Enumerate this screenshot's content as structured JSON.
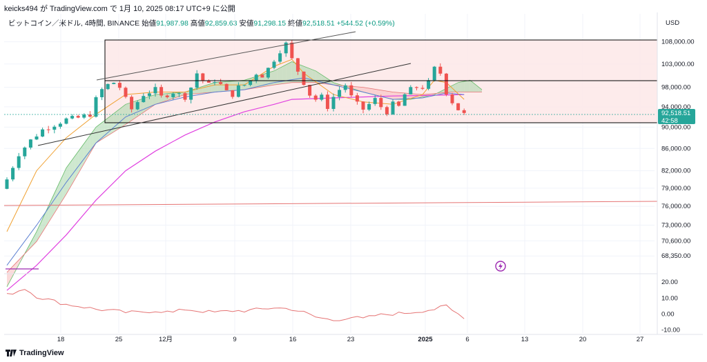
{
  "header": {
    "text": "keicks494 が TradingView.com で 1月 10, 2025 08:17 UTC+9 に公開"
  },
  "symbol": {
    "name": "ビットコイン／米ドル, 4時間, BINANCE",
    "open_label": "始値",
    "open": "91,987.98",
    "high_label": "高値",
    "high": "92,859.63",
    "low_label": "安値",
    "low": "91,298.15",
    "close_label": "終値",
    "close": "92,518.51",
    "change": "+544.52 (+0.59%)"
  },
  "currency": "USD",
  "last_price": {
    "value": "92,518.51",
    "countdown": "42:58",
    "color": "#26a69a"
  },
  "footer": {
    "brand": "TradingView"
  },
  "colors": {
    "up": "#26a69a",
    "down": "#ef5350",
    "ma_orange": "#f0a030",
    "ma_blue": "#5b7fd1",
    "ma_magenta": "#e040e0",
    "cloud_green": "#a5d6a7",
    "cloud_red": "#f8bbbb",
    "range_fill": "#fde8e8",
    "lines": "#000000",
    "osc": "#e57373"
  },
  "chart_data": [
    {
      "type": "candlestick",
      "title": "",
      "x_tick_labels": [
        "18",
        "25",
        "12月",
        "9",
        "16",
        "23",
        "2025",
        "6",
        "13",
        "20",
        "27"
      ],
      "y_tick_labels": [
        "108,000.00",
        "103,000.00",
        "98,000.00",
        "94,000.00",
        "90,000.00",
        "86,000.00",
        "82,000.00",
        "79,000.00",
        "76,000.00",
        "73,000.00",
        "70,600.00",
        "68,350.00"
      ],
      "y_scale": "log",
      "ylim": [
        66000,
        111000
      ],
      "close_path": [
        [
          0,
          80500
        ],
        [
          2,
          85000
        ],
        [
          4,
          87500
        ],
        [
          6,
          89500
        ],
        [
          8,
          90500
        ],
        [
          10,
          91500
        ],
        [
          12,
          91800
        ],
        [
          14,
          92500
        ],
        [
          15,
          95500
        ],
        [
          16,
          97500
        ],
        [
          17,
          98500
        ],
        [
          18,
          99000
        ],
        [
          19,
          98000
        ],
        [
          20,
          95500
        ],
        [
          21,
          93500
        ],
        [
          22,
          95000
        ],
        [
          23,
          96500
        ],
        [
          24,
          97000
        ],
        [
          25,
          97500
        ],
        [
          26,
          96000
        ],
        [
          27,
          96500
        ],
        [
          28,
          97000
        ],
        [
          29,
          96500
        ],
        [
          30,
          96000
        ],
        [
          31,
          98000
        ],
        [
          32,
          101000
        ],
        [
          33,
          99500
        ],
        [
          34,
          98500
        ],
        [
          35,
          99500
        ],
        [
          36,
          98500
        ],
        [
          37,
          97000
        ],
        [
          38,
          96500
        ],
        [
          39,
          98000
        ],
        [
          40,
          98500
        ],
        [
          41,
          99500
        ],
        [
          42,
          101000
        ],
        [
          43,
          100500
        ],
        [
          44,
          102000
        ],
        [
          45,
          104000
        ],
        [
          46,
          106000
        ],
        [
          47,
          107500
        ],
        [
          48,
          104000
        ],
        [
          49,
          101500
        ],
        [
          50,
          99000
        ],
        [
          51,
          96500
        ],
        [
          52,
          95500
        ],
        [
          53,
          96000
        ],
        [
          54,
          94000
        ],
        [
          55,
          96000
        ],
        [
          56,
          97500
        ],
        [
          57,
          98500
        ],
        [
          58,
          96000
        ],
        [
          59,
          94500
        ],
        [
          60,
          93500
        ],
        [
          61,
          94500
        ],
        [
          62,
          95500
        ],
        [
          63,
          94000
        ],
        [
          64,
          93000
        ],
        [
          65,
          94500
        ],
        [
          66,
          94000
        ],
        [
          67,
          96500
        ],
        [
          68,
          97500
        ],
        [
          69,
          98000
        ],
        [
          70,
          98000
        ],
        [
          71,
          99000
        ],
        [
          72,
          102000
        ],
        [
          73,
          101000
        ],
        [
          74,
          97000
        ],
        [
          75,
          95000
        ],
        [
          76,
          93500
        ],
        [
          77,
          92500
        ]
      ],
      "ma_orange": [
        [
          0,
          72000
        ],
        [
          5,
          82000
        ],
        [
          10,
          88000
        ],
        [
          15,
          92500
        ],
        [
          20,
          96500
        ],
        [
          25,
          97000
        ],
        [
          30,
          97000
        ],
        [
          35,
          98500
        ],
        [
          40,
          98500
        ],
        [
          45,
          102500
        ],
        [
          48,
          104000
        ],
        [
          50,
          101000
        ],
        [
          55,
          96500
        ],
        [
          60,
          95000
        ],
        [
          65,
          94500
        ],
        [
          70,
          96500
        ],
        [
          72,
          99500
        ],
        [
          74,
          99000
        ],
        [
          77,
          95500
        ]
      ],
      "ma_blue": [
        [
          0,
          67000
        ],
        [
          5,
          73000
        ],
        [
          10,
          80000
        ],
        [
          15,
          87000
        ],
        [
          20,
          92000
        ],
        [
          25,
          94500
        ],
        [
          30,
          96000
        ],
        [
          35,
          97000
        ],
        [
          40,
          97500
        ],
        [
          45,
          99000
        ],
        [
          50,
          100000
        ],
        [
          55,
          98500
        ],
        [
          60,
          97000
        ],
        [
          65,
          95500
        ],
        [
          70,
          95800
        ],
        [
          74,
          96800
        ],
        [
          77,
          96500
        ]
      ],
      "ma_magenta": [
        [
          0,
          63500
        ],
        [
          5,
          67000
        ],
        [
          10,
          71500
        ],
        [
          15,
          77000
        ],
        [
          20,
          82000
        ],
        [
          25,
          85500
        ],
        [
          30,
          88500
        ],
        [
          35,
          91000
        ],
        [
          40,
          93000
        ],
        [
          45,
          94500
        ],
        [
          48,
          95500
        ],
        [
          55,
          95800
        ],
        [
          60,
          96000
        ],
        [
          65,
          96200
        ],
        [
          70,
          96300
        ],
        [
          77,
          96500
        ]
      ],
      "ichimoku_span_a": [
        [
          0,
          64000
        ],
        [
          5,
          72000
        ],
        [
          10,
          82500
        ],
        [
          15,
          90000
        ],
        [
          20,
          94500
        ],
        [
          25,
          96500
        ],
        [
          30,
          97000
        ],
        [
          35,
          99000
        ],
        [
          40,
          99500
        ],
        [
          45,
          101500
        ],
        [
          48,
          103500
        ],
        [
          52,
          101500
        ],
        [
          55,
          99000
        ],
        [
          60,
          97000
        ],
        [
          65,
          95500
        ],
        [
          68,
          95500
        ],
        [
          72,
          96500
        ],
        [
          76,
          99000
        ],
        [
          78,
          99500
        ],
        [
          80,
          97500
        ]
      ],
      "ichimoku_span_b": [
        [
          0,
          66000
        ],
        [
          5,
          70500
        ],
        [
          10,
          78000
        ],
        [
          15,
          87000
        ],
        [
          20,
          90500
        ],
        [
          25,
          94500
        ],
        [
          30,
          96500
        ],
        [
          35,
          97000
        ],
        [
          40,
          97500
        ],
        [
          45,
          98500
        ],
        [
          48,
          99000
        ],
        [
          52,
          99000
        ],
        [
          55,
          98500
        ],
        [
          60,
          98000
        ],
        [
          65,
          97000
        ],
        [
          70,
          96500
        ],
        [
          75,
          97000
        ],
        [
          80,
          97000
        ]
      ],
      "oscillator": {
        "y_tick_labels": [
          "20.00",
          "10.00",
          "0.00",
          "-10.00"
        ],
        "ylim": [
          -12,
          24
        ],
        "values": [
          [
            0,
            12
          ],
          [
            3,
            16
          ],
          [
            5,
            11
          ],
          [
            8,
            8
          ],
          [
            10,
            6
          ],
          [
            12,
            5
          ],
          [
            15,
            3
          ],
          [
            18,
            2
          ],
          [
            20,
            1
          ],
          [
            22,
            1
          ],
          [
            25,
            2
          ],
          [
            28,
            1
          ],
          [
            30,
            3
          ],
          [
            32,
            2
          ],
          [
            35,
            1
          ],
          [
            38,
            2
          ],
          [
            40,
            2
          ],
          [
            43,
            3
          ],
          [
            45,
            4
          ],
          [
            48,
            3
          ],
          [
            50,
            1
          ],
          [
            52,
            -2
          ],
          [
            55,
            -4
          ],
          [
            58,
            -2
          ],
          [
            60,
            -3
          ],
          [
            62,
            -1
          ],
          [
            65,
            0
          ],
          [
            68,
            1
          ],
          [
            70,
            2
          ],
          [
            72,
            3
          ],
          [
            74,
            5
          ],
          [
            75,
            2
          ],
          [
            77,
            -2
          ]
        ]
      }
    }
  ]
}
